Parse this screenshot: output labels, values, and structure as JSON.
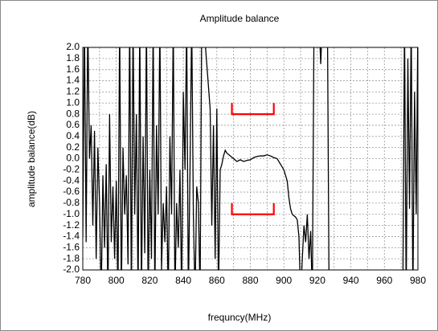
{
  "chart_data": {
    "type": "line",
    "title": "Amplitude balance",
    "xlabel": "frequncy(MHz)",
    "ylabel": "amplitude balance(dB)",
    "xlim": [
      780,
      980
    ],
    "ylim": [
      -2,
      2
    ],
    "xticks": [
      780,
      800,
      820,
      840,
      860,
      880,
      900,
      920,
      940,
      960,
      980
    ],
    "xminorticks": [
      790,
      810,
      830,
      850,
      870,
      890,
      910,
      930,
      950,
      970
    ],
    "yticks": [
      {
        "value": 2,
        "label": "2.0"
      },
      1.8,
      1.6,
      1.4,
      1.2,
      {
        "value": 1,
        "label": "1.0"
      },
      0.8,
      0.6,
      0.4,
      0.2,
      {
        "value": 0,
        "label": "0.0"
      },
      -0.2,
      -0.4,
      -0.6,
      -0.8,
      {
        "value": -1,
        "label": "-1.0"
      },
      -1.2,
      -1.4,
      -1.6,
      -1.8,
      {
        "value": -2,
        "label": "-2.0"
      }
    ],
    "grid": true,
    "series": [
      {
        "color": "#000000",
        "x": [
          780,
          781,
          782,
          783,
          784,
          785,
          786,
          787,
          788,
          789,
          790,
          791,
          792,
          793,
          794,
          795,
          796,
          797,
          798,
          799,
          800,
          801,
          802,
          803,
          804,
          805,
          806,
          807,
          808,
          809,
          810,
          811,
          812,
          813,
          814,
          815,
          816,
          817,
          818,
          819,
          820,
          821,
          822,
          823,
          824,
          825,
          826,
          827,
          828,
          829,
          830,
          831,
          832,
          833,
          834,
          835,
          836,
          837,
          838,
          839,
          840,
          841,
          842,
          843,
          844,
          845,
          846,
          847,
          848,
          849,
          850,
          851,
          852,
          856,
          857,
          858,
          859,
          860,
          861,
          862,
          863,
          864,
          865,
          866,
          868,
          870,
          872,
          874,
          876,
          878,
          880,
          882,
          884,
          886,
          888,
          890,
          892,
          894,
          896,
          898,
          900,
          902,
          903,
          904,
          905,
          907,
          908,
          909,
          910,
          911,
          912,
          913,
          914,
          915,
          916,
          917,
          918,
          921,
          922,
          923,
          926,
          927,
          950,
          971,
          972,
          973,
          974,
          975,
          976,
          977,
          978,
          979,
          980
        ],
        "values": [
          -1.4,
          2.5,
          -1.5,
          2.5,
          0,
          0.6,
          -1.2,
          0.5,
          -1.8,
          0.2,
          -0.8,
          -2.5,
          -0.3,
          -1.6,
          -0.1,
          -2.5,
          0.8,
          -1.5,
          -0.5,
          -1.8,
          -0.4,
          -2.5,
          2.5,
          -2.5,
          0.2,
          -1.0,
          -0.3,
          -1.9,
          2.5,
          -2.5,
          2.5,
          -1.0,
          0.8,
          -2.5,
          2.5,
          -2.5,
          0.4,
          -1.7,
          2.5,
          -2.5,
          -0.2,
          -1.8,
          2.5,
          -2.5,
          0.6,
          -1.0,
          2.5,
          -2.0,
          -0.8,
          -1.5,
          -0.5,
          -2.5,
          0.4,
          -1.0,
          2.5,
          -2.5,
          -0.8,
          -1.6,
          -0.2,
          -2.5,
          1.2,
          -0.2,
          2.5,
          -2.5,
          -0.2,
          2.5,
          -1.0,
          -2.5,
          -0.5,
          -0.8,
          -2.5,
          2.5,
          2.5,
          0.9,
          -1.2,
          0.6,
          -1.8,
          0.9,
          -2.5,
          -0.2,
          -0.1,
          0.05,
          0.15,
          0.1,
          0.05,
          0,
          -0.05,
          -0.02,
          -0.05,
          -0.03,
          -0.02,
          0.02,
          0.04,
          0.05,
          0.05,
          0.07,
          0.05,
          0.02,
          0,
          -0.1,
          -0.2,
          -0.4,
          -0.7,
          -0.9,
          -1.0,
          -1.05,
          -1.1,
          -1.4,
          -2.5,
          -1.8,
          -1.2,
          -1.5,
          -1.0,
          -1.8,
          -1.3,
          -2.5,
          2.5,
          2.5,
          1.7,
          2.5,
          2.5,
          -2.5,
          null,
          -2.5,
          2.5,
          -2.5,
          1.8,
          -0.9,
          2.5,
          -2.5,
          1.2,
          -1.0,
          2.5
        ]
      },
      {
        "color": "#ff0000",
        "x": [
          869,
          869,
          894,
          894
        ],
        "values": [
          1,
          0.8,
          0.8,
          1
        ]
      },
      {
        "color": "#ff0000",
        "x": [
          869,
          869,
          894,
          894
        ],
        "values": [
          -0.8,
          -1,
          -1,
          -0.8
        ]
      }
    ]
  }
}
